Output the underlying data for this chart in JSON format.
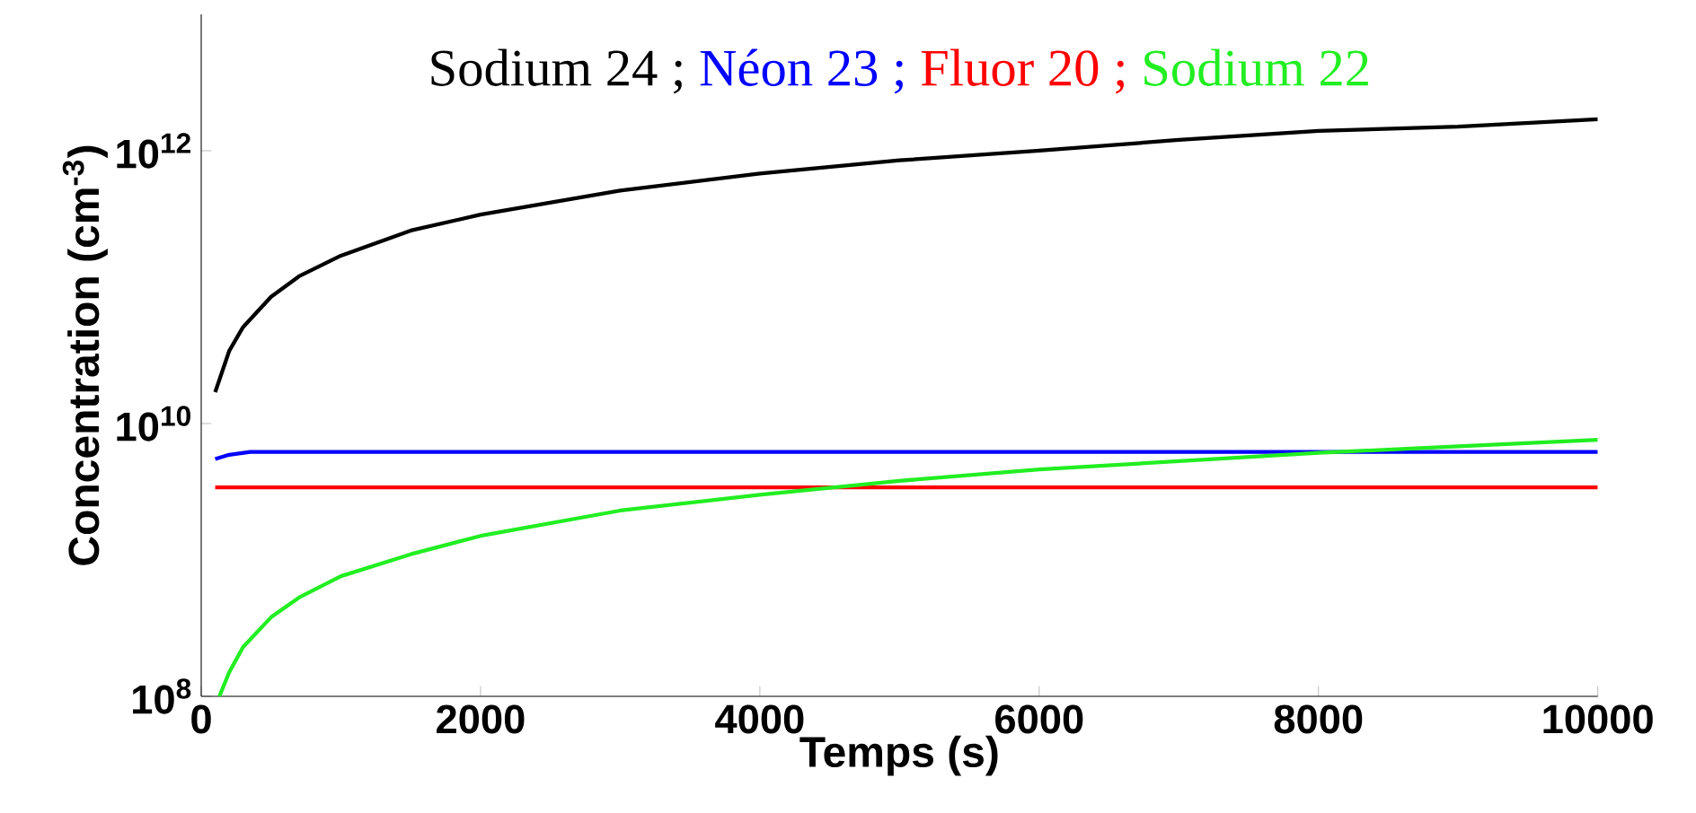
{
  "chart_data": {
    "type": "line",
    "xlabel": "Temps (s)",
    "ylabel": "Concentration (cm$^{-3}$)",
    "log": "y",
    "legend": "top",
    "grid": false,
    "xlim": [
      0,
      10000
    ],
    "xticks": [
      0,
      2000,
      4000,
      6000,
      8000,
      10000
    ],
    "ylim": [
      100000000,
      10000000000000
    ],
    "yticks": [
      {
        "value": 100000000,
        "label": "10$^{8}$"
      },
      {
        "value": 10000000000,
        "label": "10$^{10}$"
      },
      {
        "value": 1000000000000,
        "label": "10$^{12}$"
      }
    ],
    "series": [
      {
        "name": "Sodium 24 ;",
        "color": "#000000",
        "x": [
          100,
          200,
          300,
          500,
          700,
          1000,
          1500,
          2000,
          3000,
          4000,
          5000,
          6000,
          7000,
          8000,
          9000,
          10000
        ],
        "values": [
          17000000000,
          34000000000,
          51000000000,
          85000000000,
          120000000000,
          170000000000,
          260000000000,
          340000000000,
          510000000000,
          680000000000,
          850000000000,
          1000000000000,
          1200000000000,
          1400000000000,
          1500000000000,
          1700000000000
        ]
      },
      {
        "name": "Néon 23 ;",
        "color": "#0000ff",
        "x": [
          100,
          200,
          350,
          10000
        ],
        "values": [
          5500000000,
          5900000000,
          6200000000,
          6200000000
        ]
      },
      {
        "name": "Fluor 20 ;",
        "color": "#ff0000",
        "x": [
          100,
          10000
        ],
        "values": [
          3400000000,
          3400000000
        ]
      },
      {
        "name": "Sodium 22",
        "color": "#22ee22",
        "x": [
          130,
          200,
          300,
          500,
          700,
          1000,
          1500,
          2000,
          3000,
          4000,
          5000,
          6000,
          7000,
          8000,
          9000,
          10000
        ],
        "values": [
          100000000,
          150000000,
          230000000,
          380000000,
          530000000,
          760000000,
          1100000000,
          1500000000,
          2300000000,
          3000000000,
          3800000000,
          4600000000,
          5300000000,
          6100000000,
          6800000000,
          7600000000
        ]
      }
    ]
  }
}
